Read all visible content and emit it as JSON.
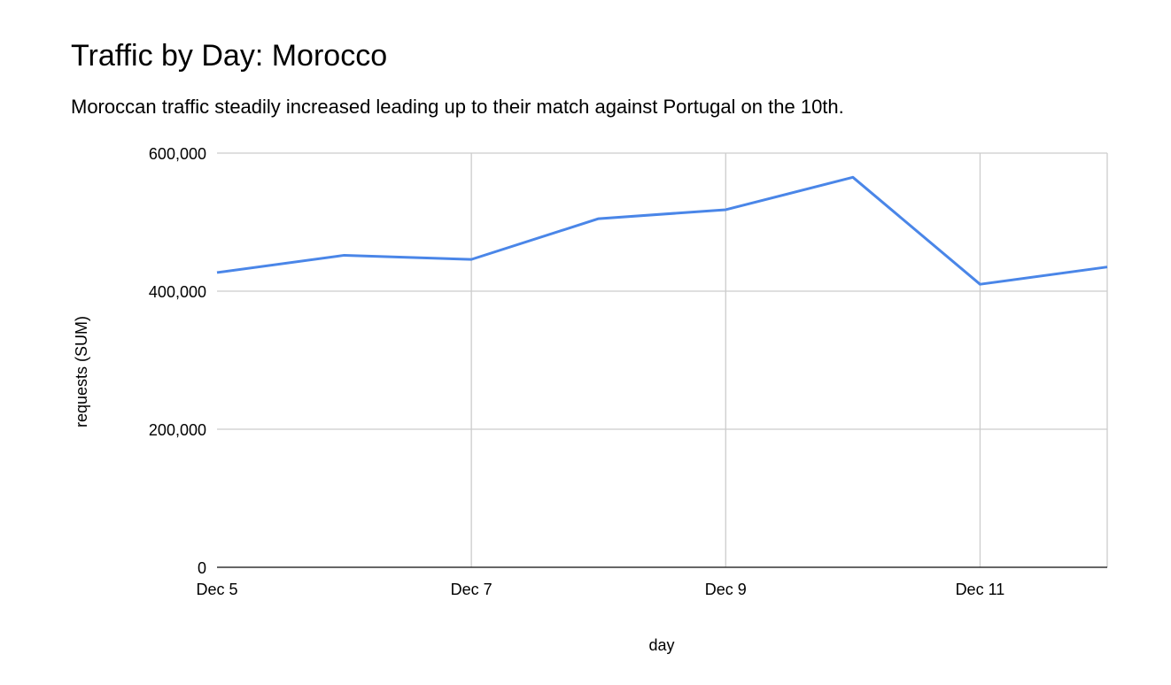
{
  "chart_data": {
    "type": "line",
    "title": "Traffic by Day: Morocco",
    "subtitle": "Moroccan traffic steadily increased leading up to their match against Portugal on the 10th.",
    "xlabel": "day",
    "ylabel": "requests (SUM)",
    "x": [
      "Dec 5",
      "Dec 6",
      "Dec 7",
      "Dec 8",
      "Dec 9",
      "Dec 10",
      "Dec 11",
      "Dec 12"
    ],
    "x_tick_labels": [
      "Dec 5",
      "Dec 7",
      "Dec 9",
      "Dec 11"
    ],
    "y_tick_labels": [
      "0",
      "200,000",
      "400,000",
      "600,000"
    ],
    "ylim": [
      0,
      600000
    ],
    "grid": true,
    "legend": "none",
    "series": [
      {
        "values": [
          427000,
          452000,
          446000,
          505000,
          518000,
          565000,
          410000,
          435000
        ],
        "color": "#4a86e8"
      }
    ]
  }
}
